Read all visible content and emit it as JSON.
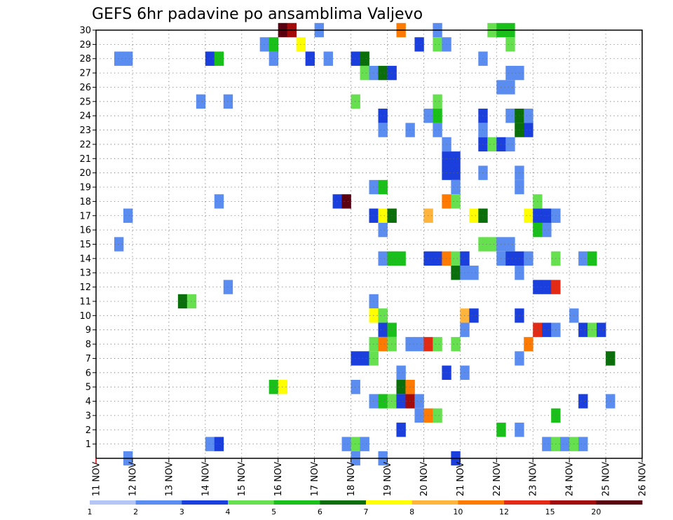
{
  "chart_data": {
    "type": "heatmap",
    "title": "GEFS 6hr padavine po ansamblima Valjevo",
    "x_tick_labels": [
      "11 NOV",
      "12 NOV",
      "13 NOV",
      "14 NOV",
      "15 NOV",
      "16 NOV",
      "17 NOV",
      "18 NOV",
      "19 NOV",
      "20 NOV",
      "21 NOV",
      "22 NOV",
      "23 NOV",
      "24 NOV",
      "25 NOV",
      "26 NOV"
    ],
    "y_tick_labels": [
      "1",
      "2",
      "3",
      "4",
      "5",
      "6",
      "7",
      "8",
      "9",
      "10",
      "11",
      "12",
      "13",
      "14",
      "15",
      "16",
      "17",
      "18",
      "19",
      "20",
      "21",
      "22",
      "23",
      "24",
      "25",
      "26",
      "27",
      "28",
      "29",
      "30"
    ],
    "x_range": [
      0,
      60
    ],
    "y_range": [
      0,
      30
    ],
    "grid": true,
    "colorbar": {
      "labels": [
        "1",
        "2",
        "3",
        "4",
        "5",
        "6",
        "7",
        "8",
        "10",
        "12",
        "15",
        "20"
      ],
      "colors": [
        "#b3c6f5",
        "#5b8df0",
        "#1a3fdc",
        "#66e04e",
        "#1ac01a",
        "#0a6e0a",
        "#ffff00",
        "#ffb43c",
        "#ff7a00",
        "#e22a14",
        "#a30a0a",
        "#5a0010"
      ]
    },
    "cells": [
      [
        20,
        30,
        11
      ],
      [
        21,
        30,
        10
      ],
      [
        24,
        30,
        1
      ],
      [
        33,
        30,
        8
      ],
      [
        37,
        30,
        1
      ],
      [
        43,
        30,
        3
      ],
      [
        44,
        30,
        4
      ],
      [
        45,
        30,
        4
      ],
      [
        18,
        29,
        1
      ],
      [
        19,
        29,
        4
      ],
      [
        22,
        29,
        6
      ],
      [
        35,
        29,
        2
      ],
      [
        37,
        29,
        3
      ],
      [
        38,
        29,
        1
      ],
      [
        45,
        29,
        3
      ],
      [
        2,
        28,
        1
      ],
      [
        3,
        28,
        1
      ],
      [
        12,
        28,
        2
      ],
      [
        13,
        28,
        4
      ],
      [
        19,
        28,
        1
      ],
      [
        23,
        28,
        2
      ],
      [
        25,
        28,
        1
      ],
      [
        28,
        28,
        2
      ],
      [
        29,
        28,
        5
      ],
      [
        42,
        28,
        1
      ],
      [
        29,
        27,
        3
      ],
      [
        30,
        27,
        1
      ],
      [
        31,
        27,
        5
      ],
      [
        32,
        27,
        2
      ],
      [
        45,
        27,
        1
      ],
      [
        46,
        27,
        1
      ],
      [
        44,
        26,
        1
      ],
      [
        45,
        26,
        1
      ],
      [
        11,
        25,
        1
      ],
      [
        14,
        25,
        1
      ],
      [
        28,
        25,
        3
      ],
      [
        37,
        25,
        3
      ],
      [
        31,
        24,
        2
      ],
      [
        36,
        24,
        1
      ],
      [
        37,
        24,
        4
      ],
      [
        42,
        24,
        2
      ],
      [
        45,
        24,
        1
      ],
      [
        46,
        24,
        5
      ],
      [
        47,
        24,
        1
      ],
      [
        31,
        23,
        1
      ],
      [
        34,
        23,
        1
      ],
      [
        37,
        23,
        1
      ],
      [
        42,
        23,
        1
      ],
      [
        46,
        23,
        5
      ],
      [
        47,
        23,
        2
      ],
      [
        38,
        22,
        1
      ],
      [
        42,
        22,
        2
      ],
      [
        43,
        22,
        3
      ],
      [
        44,
        22,
        2
      ],
      [
        45,
        22,
        1
      ],
      [
        38,
        21,
        2
      ],
      [
        39,
        21,
        2
      ],
      [
        38,
        20,
        2
      ],
      [
        39,
        20,
        2
      ],
      [
        42,
        20,
        1
      ],
      [
        46,
        20,
        1
      ],
      [
        30,
        19,
        1
      ],
      [
        31,
        19,
        4
      ],
      [
        39,
        19,
        1
      ],
      [
        46,
        19,
        1
      ],
      [
        13,
        18,
        1
      ],
      [
        26,
        18,
        2
      ],
      [
        27,
        18,
        11
      ],
      [
        38,
        18,
        8
      ],
      [
        39,
        18,
        3
      ],
      [
        48,
        18,
        3
      ],
      [
        3,
        17,
        1
      ],
      [
        30,
        17,
        2
      ],
      [
        31,
        17,
        6
      ],
      [
        32,
        17,
        5
      ],
      [
        36,
        17,
        7
      ],
      [
        41,
        17,
        6
      ],
      [
        42,
        17,
        5
      ],
      [
        47,
        17,
        6
      ],
      [
        48,
        17,
        2
      ],
      [
        49,
        17,
        2
      ],
      [
        50,
        17,
        1
      ],
      [
        31,
        16,
        1
      ],
      [
        48,
        16,
        4
      ],
      [
        49,
        16,
        1
      ],
      [
        2,
        15,
        1
      ],
      [
        42,
        15,
        3
      ],
      [
        43,
        15,
        3
      ],
      [
        44,
        15,
        1
      ],
      [
        45,
        15,
        1
      ],
      [
        31,
        14,
        1
      ],
      [
        32,
        14,
        4
      ],
      [
        33,
        14,
        4
      ],
      [
        36,
        14,
        2
      ],
      [
        37,
        14,
        2
      ],
      [
        38,
        14,
        8
      ],
      [
        39,
        14,
        3
      ],
      [
        40,
        14,
        2
      ],
      [
        44,
        14,
        1
      ],
      [
        45,
        14,
        2
      ],
      [
        46,
        14,
        2
      ],
      [
        47,
        14,
        1
      ],
      [
        50,
        14,
        3
      ],
      [
        53,
        14,
        1
      ],
      [
        54,
        14,
        4
      ],
      [
        39,
        13,
        5
      ],
      [
        40,
        13,
        1
      ],
      [
        41,
        13,
        1
      ],
      [
        46,
        13,
        1
      ],
      [
        14,
        12,
        1
      ],
      [
        48,
        12,
        2
      ],
      [
        49,
        12,
        2
      ],
      [
        50,
        12,
        9
      ],
      [
        9,
        11,
        5
      ],
      [
        10,
        11,
        3
      ],
      [
        30,
        11,
        1
      ],
      [
        30,
        10,
        6
      ],
      [
        31,
        10,
        3
      ],
      [
        40,
        10,
        7
      ],
      [
        41,
        10,
        2
      ],
      [
        46,
        10,
        2
      ],
      [
        52,
        10,
        1
      ],
      [
        31,
        9,
        2
      ],
      [
        32,
        9,
        4
      ],
      [
        40,
        9,
        1
      ],
      [
        48,
        9,
        9
      ],
      [
        49,
        9,
        2
      ],
      [
        50,
        9,
        1
      ],
      [
        53,
        9,
        2
      ],
      [
        54,
        9,
        3
      ],
      [
        55,
        9,
        2
      ],
      [
        30,
        8,
        3
      ],
      [
        31,
        8,
        8
      ],
      [
        32,
        8,
        3
      ],
      [
        34,
        8,
        1
      ],
      [
        35,
        8,
        1
      ],
      [
        36,
        8,
        9
      ],
      [
        37,
        8,
        3
      ],
      [
        39,
        8,
        3
      ],
      [
        47,
        8,
        8
      ],
      [
        28,
        7,
        2
      ],
      [
        29,
        7,
        2
      ],
      [
        30,
        7,
        3
      ],
      [
        46,
        7,
        1
      ],
      [
        56,
        7,
        5
      ],
      [
        33,
        6,
        1
      ],
      [
        38,
        6,
        2
      ],
      [
        40,
        6,
        1
      ],
      [
        19,
        5,
        4
      ],
      [
        20,
        5,
        6
      ],
      [
        28,
        5,
        1
      ],
      [
        33,
        5,
        5
      ],
      [
        34,
        5,
        8
      ],
      [
        30,
        4,
        1
      ],
      [
        31,
        4,
        4
      ],
      [
        32,
        4,
        3
      ],
      [
        33,
        4,
        2
      ],
      [
        34,
        4,
        10
      ],
      [
        35,
        4,
        1
      ],
      [
        53,
        4,
        2
      ],
      [
        56,
        4,
        1
      ],
      [
        35,
        3,
        1
      ],
      [
        36,
        3,
        8
      ],
      [
        37,
        3,
        3
      ],
      [
        50,
        3,
        4
      ],
      [
        33,
        2,
        2
      ],
      [
        44,
        2,
        4
      ],
      [
        46,
        2,
        1
      ],
      [
        12,
        1,
        1
      ],
      [
        13,
        1,
        2
      ],
      [
        27,
        1,
        1
      ],
      [
        28,
        1,
        3
      ],
      [
        29,
        1,
        1
      ],
      [
        49,
        1,
        1
      ],
      [
        50,
        1,
        3
      ],
      [
        51,
        1,
        1
      ],
      [
        52,
        1,
        3
      ],
      [
        53,
        1,
        1
      ],
      [
        3,
        0,
        1
      ],
      [
        28,
        0,
        1
      ],
      [
        31,
        0,
        1
      ],
      [
        39,
        0,
        2
      ]
    ]
  }
}
